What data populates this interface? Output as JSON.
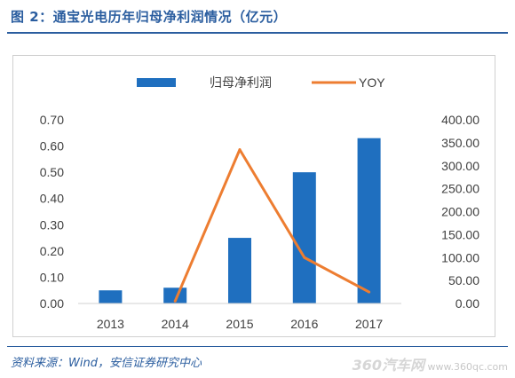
{
  "header": {
    "title": "图 2：通宝光电历年归母净利润情况（亿元）"
  },
  "footer": {
    "source": "资料来源：Wind，安信证券研究中心"
  },
  "watermark": {
    "brand": "360汽车网",
    "url": "www.360qc.com"
  },
  "colors": {
    "bar": "#1f6fbf",
    "line": "#ed7d31",
    "title": "#2a5d9f"
  },
  "chart_data": {
    "type": "bar+line",
    "categories": [
      "2013",
      "2014",
      "2015",
      "2016",
      "2017"
    ],
    "series": [
      {
        "name": "归母净利润",
        "type": "bar",
        "axis": "left",
        "values": [
          0.05,
          0.06,
          0.25,
          0.5,
          0.63
        ]
      },
      {
        "name": "YOY",
        "type": "line",
        "axis": "right",
        "values": [
          null,
          5,
          335,
          100,
          25
        ]
      }
    ],
    "y_left": {
      "ylim": [
        0,
        0.7
      ],
      "ticks": [
        "0.00",
        "0.10",
        "0.20",
        "0.30",
        "0.40",
        "0.50",
        "0.60",
        "0.70"
      ]
    },
    "y_right": {
      "ylim": [
        0,
        400
      ],
      "ticks": [
        "0.00",
        "50.00",
        "100.00",
        "150.00",
        "200.00",
        "250.00",
        "300.00",
        "350.00",
        "400.00"
      ]
    },
    "legend": {
      "position": "top"
    },
    "grid": false
  }
}
